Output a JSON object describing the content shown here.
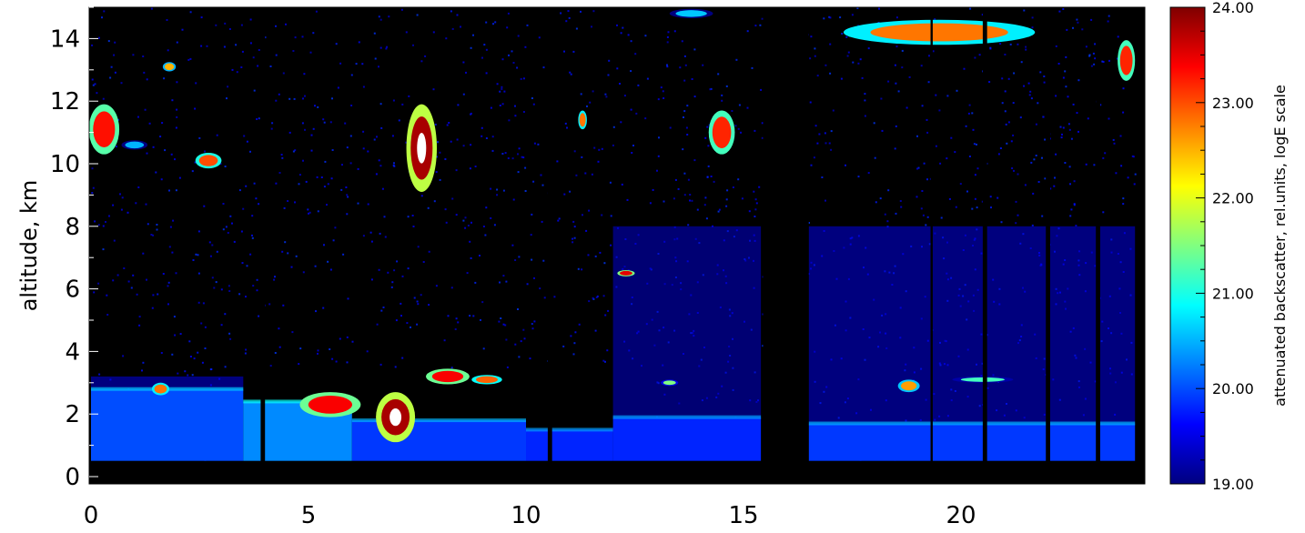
{
  "chart_data": {
    "type": "heatmap",
    "title": "",
    "xlabel": "",
    "ylabel": "altitude, km",
    "xlim": [
      0,
      24
    ],
    "ylim": [
      0,
      15
    ],
    "x_ticks": [
      {
        "value": 0,
        "label": "0"
      },
      {
        "value": 5,
        "label": "5"
      },
      {
        "value": 10,
        "label": "10"
      },
      {
        "value": 15,
        "label": "15"
      },
      {
        "value": 20,
        "label": "20"
      }
    ],
    "y_ticks": [
      {
        "value": 0,
        "label": "0"
      },
      {
        "value": 2,
        "label": "2"
      },
      {
        "value": 4,
        "label": "4"
      },
      {
        "value": 6,
        "label": "6"
      },
      {
        "value": 8,
        "label": "8"
      },
      {
        "value": 10,
        "label": "10"
      },
      {
        "value": 12,
        "label": "12"
      },
      {
        "value": 14,
        "label": "14"
      }
    ],
    "colorbar": {
      "label": "attenuated backscatter, rel.units, logE scale",
      "range": [
        19,
        24
      ],
      "ticks": [
        {
          "value": 19,
          "label": "19.00"
        },
        {
          "value": 20,
          "label": "20.00"
        },
        {
          "value": 21,
          "label": "21.00"
        },
        {
          "value": 22,
          "label": "22.00"
        },
        {
          "value": 23,
          "label": "23.00"
        },
        {
          "value": 24,
          "label": "24.00"
        }
      ],
      "colormap": "jet",
      "colors": [
        "#00007f",
        "#0000ff",
        "#0080ff",
        "#00ffff",
        "#80ff80",
        "#ffff00",
        "#ff8000",
        "#ff0000",
        "#7f0000"
      ]
    },
    "boundary_layer": [
      {
        "x0": 0,
        "x1": 3.5,
        "top": 2.8,
        "value": 20.0
      },
      {
        "x0": 3.5,
        "x1": 6,
        "top": 2.4,
        "value": 20.3
      },
      {
        "x0": 6,
        "x1": 10,
        "top": 1.8,
        "value": 19.9
      },
      {
        "x0": 10,
        "x1": 12,
        "top": 1.5,
        "value": 19.8
      },
      {
        "x0": 12,
        "x1": 15.4,
        "top": 1.9,
        "value": 19.8
      },
      {
        "x0": 16.5,
        "x1": 24,
        "top": 1.7,
        "value": 19.9
      }
    ],
    "residual_layer": [
      {
        "x0": 0,
        "x1": 3.5,
        "bottom": 2.8,
        "top": 3.2,
        "value": 19.5
      },
      {
        "x0": 12,
        "x1": 15.4,
        "bottom": 1.9,
        "top": 8.0,
        "value": 19.4
      },
      {
        "x0": 16.5,
        "x1": 24,
        "bottom": 1.7,
        "top": 8.0,
        "value": 19.5
      }
    ],
    "cloud_features": [
      {
        "x": 0.3,
        "y": 11.1,
        "w": 0.7,
        "h": 1.6,
        "value": 23.3
      },
      {
        "x": 1.0,
        "y": 10.6,
        "w": 0.6,
        "h": 0.3,
        "value": 20.5
      },
      {
        "x": 1.8,
        "y": 13.1,
        "w": 0.3,
        "value": 22.5,
        "h": 0.3
      },
      {
        "x": 2.7,
        "y": 10.1,
        "w": 0.6,
        "h": 0.5,
        "value": 23.0
      },
      {
        "x": 7.6,
        "y": 10.5,
        "w": 0.7,
        "h": 2.8,
        "value": 23.8
      },
      {
        "x": 11.3,
        "y": 11.4,
        "w": 0.2,
        "h": 0.6,
        "value": 22.8
      },
      {
        "x": 12.3,
        "y": 6.5,
        "w": 0.4,
        "h": 0.2,
        "value": 23.5
      },
      {
        "x": 14.5,
        "y": 11.0,
        "w": 0.6,
        "h": 1.4,
        "value": 23.2
      },
      {
        "x": 19.5,
        "y": 14.2,
        "w": 4.4,
        "h": 0.8,
        "value": 22.8
      },
      {
        "x": 23.8,
        "y": 13.3,
        "w": 0.4,
        "h": 1.3,
        "value": 23.2
      },
      {
        "x": 13.8,
        "y": 14.8,
        "w": 1.0,
        "h": 0.3,
        "value": 20.6
      },
      {
        "x": 1.6,
        "y": 2.8,
        "w": 0.4,
        "h": 0.4,
        "value": 22.8
      },
      {
        "x": 5.5,
        "y": 2.3,
        "w": 1.4,
        "h": 0.8,
        "value": 23.4
      },
      {
        "x": 7.0,
        "y": 1.9,
        "w": 0.9,
        "h": 1.6,
        "value": 23.8
      },
      {
        "x": 8.2,
        "y": 3.2,
        "w": 1.0,
        "h": 0.5,
        "value": 23.4
      },
      {
        "x": 9.1,
        "y": 3.1,
        "w": 0.7,
        "h": 0.3,
        "value": 22.9
      },
      {
        "x": 13.3,
        "y": 3.0,
        "w": 0.4,
        "h": 0.2,
        "value": 21.5
      },
      {
        "x": 18.8,
        "y": 2.9,
        "w": 0.5,
        "h": 0.4,
        "value": 22.6
      },
      {
        "x": 20.5,
        "y": 3.1,
        "w": 1.4,
        "h": 0.2,
        "value": 21.2
      }
    ],
    "signal_gaps": [
      {
        "x0": 15.45,
        "x1": 16.5
      },
      {
        "x0": 3.9,
        "x1": 4.0
      },
      {
        "x0": 10.5,
        "x1": 10.6
      },
      {
        "x0": 19.3,
        "x1": 19.35
      },
      {
        "x0": 20.5,
        "x1": 20.6
      },
      {
        "x0": 21.95,
        "x1": 22.05
      },
      {
        "x0": 23.1,
        "x1": 23.2
      }
    ]
  }
}
